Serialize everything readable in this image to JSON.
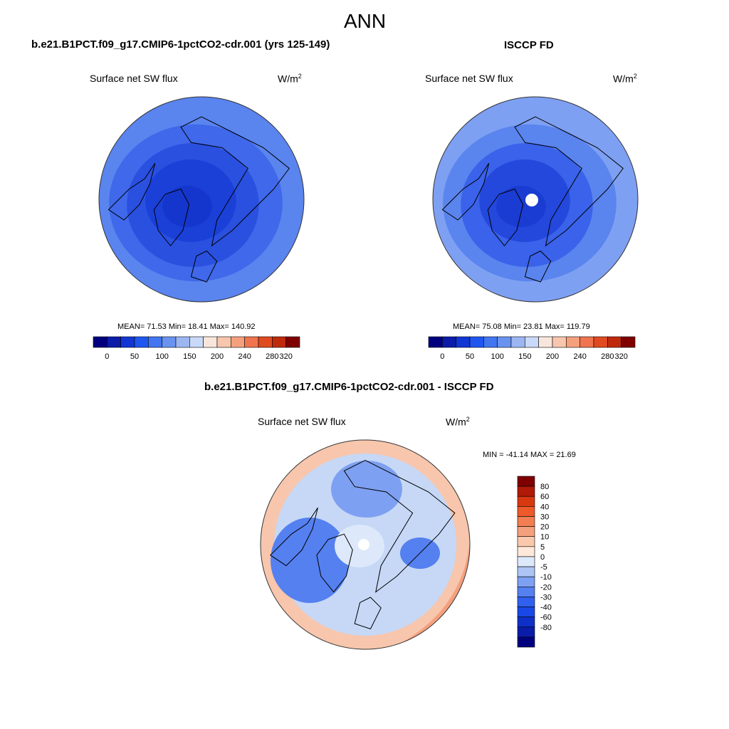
{
  "page": {
    "title": "ANN",
    "panel1_header": "b.e21.B1PCT.f09_g17.CMIP6-1pctCO2-cdr.001 (yrs 125-149)",
    "panel2_header": "ISCCP FD",
    "panel3_header": "b.e21.B1PCT.f09_g17.CMIP6-1pctCO2-cdr.001 - ISCCP FD"
  },
  "panels": [
    {
      "variable": "Surface net SW flux",
      "units_base": "W/m",
      "units_exp": "2",
      "stats": "MEAN=  71.53  Min=  18.41  Max= 140.92"
    },
    {
      "variable": "Surface net SW flux",
      "units_base": "W/m",
      "units_exp": "2",
      "stats": "MEAN=  75.08  Min=  23.81  Max= 119.79"
    },
    {
      "variable": "Surface net SW flux",
      "units_base": "W/m",
      "units_exp": "2",
      "stats": "MIN = -41.14 MAX =  21.69"
    }
  ],
  "colorbar_abs": {
    "colors": [
      "#00007f",
      "#0a1ca8",
      "#1236d3",
      "#1f56f0",
      "#4276f0",
      "#6a93f0",
      "#9cb6f2",
      "#c9d9f7",
      "#f8e6dc",
      "#f7c6ad",
      "#f5a07d",
      "#f0744f",
      "#e04a21",
      "#c02a0c",
      "#7f0000"
    ],
    "labels": [
      "0",
      "50",
      "100",
      "150",
      "200",
      "240",
      "280",
      "320"
    ]
  },
  "colorbar_diff": {
    "colors": [
      "#00007f",
      "#0a1ca8",
      "#0e30c8",
      "#1a48e6",
      "#3060ee",
      "#5580f0",
      "#7ea0f2",
      "#adc4f5",
      "#dde9fa",
      "#fde8da",
      "#f9c8ad",
      "#f5a07d",
      "#f27e52",
      "#ee5a2a",
      "#d83810",
      "#b01a06",
      "#7f0000"
    ],
    "labels": [
      "80",
      "60",
      "40",
      "30",
      "20",
      "10",
      "5",
      "0",
      "-5",
      "-10",
      "-20",
      "-30",
      "-40",
      "-60",
      "-80"
    ]
  },
  "maps": {
    "model": {
      "fills": [
        "#5a84ee",
        "#3f68ea",
        "#2a50e0",
        "#1a40d8",
        "#1536cc"
      ]
    },
    "obs": {
      "fills": [
        "#7ea0f2",
        "#5a84ee",
        "#3a62ea",
        "#2448dc",
        "#1a3cd2"
      ]
    },
    "diff": {
      "ocean": "#c6d8f6",
      "warm": "#f5a07d",
      "warm2": "#f7c6ad",
      "cool": "#5580f0",
      "cool2": "#7ea0f2",
      "neutral": "#dde9fa"
    }
  }
}
